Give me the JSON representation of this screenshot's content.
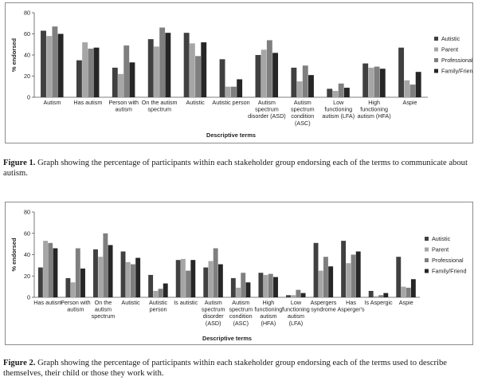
{
  "chart_data": [
    {
      "type": "bar",
      "ylabel": "% endorsed",
      "xlabel": "Descriptive terms",
      "ylim": [
        0,
        80
      ],
      "yticks": [
        0,
        20,
        40,
        60,
        80
      ],
      "legend_position": "right",
      "categories": [
        [
          "Autism"
        ],
        [
          "Has autism"
        ],
        [
          "Person with",
          "autism"
        ],
        [
          "On the autism",
          "spectrum"
        ],
        [
          "Autistic"
        ],
        [
          "Autistic person"
        ],
        [
          "Autism",
          "spectrum",
          "disorder (ASD)"
        ],
        [
          "Autism",
          "spectrum",
          "condition",
          "(ASC)"
        ],
        [
          "Low",
          "functioning",
          "autism (LFA)"
        ],
        [
          "High",
          "functioning",
          "autism (HFA)"
        ],
        [
          "Aspie"
        ]
      ],
      "series": [
        {
          "name": "Autistic",
          "color": "#404040",
          "values": [
            63,
            35,
            28,
            55,
            61,
            36,
            40,
            28,
            8,
            32,
            47
          ]
        },
        {
          "name": "Parent",
          "color": "#a6a6a6",
          "values": [
            58,
            52,
            22,
            48,
            51,
            10,
            45,
            15,
            6,
            28,
            16
          ]
        },
        {
          "name": "Professional",
          "color": "#7f7f7f",
          "values": [
            67,
            46,
            49,
            66,
            39,
            10,
            54,
            30,
            13,
            29,
            12
          ]
        },
        {
          "name": "Family/Friend",
          "color": "#262626",
          "values": [
            60,
            47,
            33,
            61,
            52,
            17,
            42,
            21,
            9,
            27,
            24
          ]
        }
      ]
    },
    {
      "type": "bar",
      "ylabel": "% endorsed",
      "xlabel": "Descriptive terms",
      "ylim": [
        0,
        80
      ],
      "yticks": [
        0,
        20,
        40,
        60,
        80
      ],
      "legend_position": "right",
      "categories": [
        [
          "Has autism"
        ],
        [
          "Person with",
          "autism"
        ],
        [
          "On the",
          "autism",
          "spectrum"
        ],
        [
          "Autistic"
        ],
        [
          "Autistic",
          "person"
        ],
        [
          "Is autistic"
        ],
        [
          "Autism",
          "spectrum",
          "disorder",
          "(ASD)"
        ],
        [
          "Autism",
          "spectrum",
          "condition",
          "(ASC)"
        ],
        [
          "High",
          "functioning",
          "autism",
          "(HFA)"
        ],
        [
          "Low",
          "functioning",
          "autism",
          "(LFA)"
        ],
        [
          "Aspergers",
          "syndrome"
        ],
        [
          "Has",
          "Asperger's"
        ],
        [
          "Is Aspergic"
        ],
        [
          "Aspie"
        ]
      ],
      "series": [
        {
          "name": "Autistic",
          "color": "#404040",
          "values": [
            28,
            18,
            45,
            43,
            21,
            35,
            28,
            18,
            23,
            2,
            51,
            53,
            6,
            38
          ]
        },
        {
          "name": "Parent",
          "color": "#a6a6a6",
          "values": [
            53,
            14,
            38,
            33,
            6,
            36,
            34,
            9,
            21,
            2,
            25,
            32,
            1,
            10
          ]
        },
        {
          "name": "Professional",
          "color": "#7f7f7f",
          "values": [
            51,
            46,
            60,
            31,
            8,
            25,
            46,
            23,
            22,
            7,
            38,
            40,
            2,
            9
          ]
        },
        {
          "name": "Family/Friend",
          "color": "#262626",
          "values": [
            46,
            27,
            49,
            37,
            13,
            35,
            31,
            14,
            19,
            4,
            29,
            43,
            4,
            17
          ]
        }
      ]
    }
  ],
  "captions": [
    {
      "label": "Figure 1.",
      "text": " Graph showing the percentage of participants within each stakeholder group endorsing each of the terms to communicate about autism."
    },
    {
      "label": "Figure 2.",
      "text": " Graph showing the percentage of participants within each stakeholder group endorsing each of the terms used to describe themselves, their child or those they work with."
    }
  ]
}
